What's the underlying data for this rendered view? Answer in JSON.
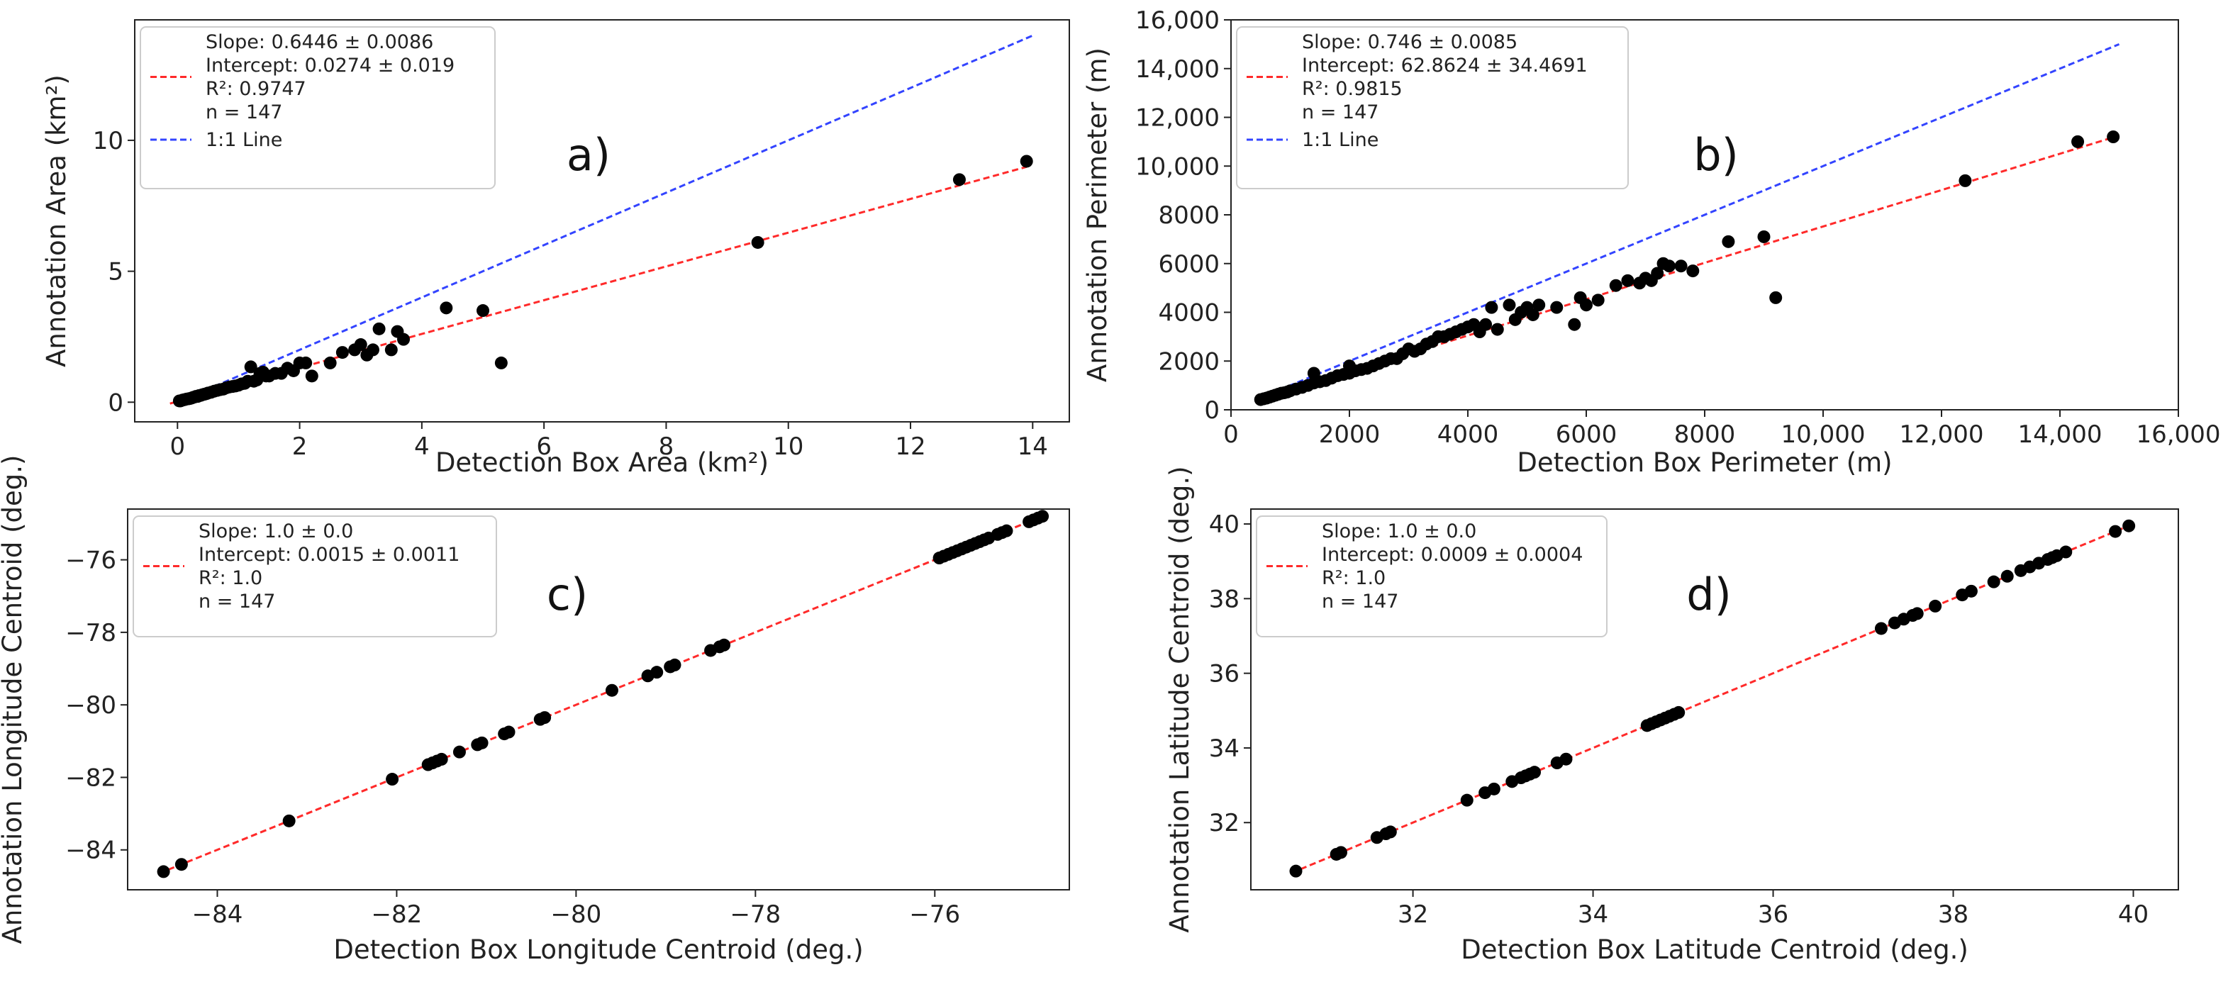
{
  "chart_data": [
    {
      "type": "scatter",
      "panel_label": "a)",
      "xlabel": "Detection Box Area (km²)",
      "ylabel": "Annotation Area (km²)",
      "xlim": [
        -0.7,
        14.6
      ],
      "ylim": [
        -0.75,
        14.6
      ],
      "xticks": [
        0,
        2,
        4,
        6,
        8,
        10,
        12,
        14
      ],
      "yticks": [
        0,
        5,
        10
      ],
      "xtick_labels": [
        "0",
        "2",
        "4",
        "6",
        "8",
        "10",
        "12",
        "14"
      ],
      "ytick_labels": [
        "0",
        "5",
        "10"
      ],
      "legend": {
        "position": "top-left",
        "entries": [
          {
            "style": "red-dashed",
            "lines": [
              "Slope: 0.6446 ± 0.0086",
              "Intercept: 0.0274 ± 0.019",
              "R²: 0.9747",
              "n = 147"
            ]
          },
          {
            "style": "blue-dashed",
            "lines": [
              "1:1 Line"
            ]
          }
        ]
      },
      "fit_line": {
        "slope": 0.6446,
        "intercept": 0.0274,
        "color": "#ff2a2a"
      },
      "identity_line": {
        "color": "#3344ff",
        "from": 0.0,
        "to": 14.0
      },
      "point_color": "#000000",
      "x": [
        0.03,
        0.05,
        0.08,
        0.1,
        0.12,
        0.15,
        0.18,
        0.2,
        0.23,
        0.25,
        0.28,
        0.3,
        0.33,
        0.35,
        0.38,
        0.4,
        0.43,
        0.45,
        0.48,
        0.5,
        0.55,
        0.6,
        0.65,
        0.7,
        0.75,
        0.8,
        0.85,
        0.9,
        0.95,
        1.0,
        1.05,
        1.1,
        1.15,
        1.2,
        1.25,
        1.3,
        1.35,
        1.4,
        1.45,
        1.5,
        1.6,
        1.7,
        1.8,
        1.9,
        2.0,
        2.1,
        2.2,
        2.5,
        2.7,
        2.9,
        3.0,
        3.1,
        3.2,
        3.3,
        3.5,
        3.6,
        3.7,
        4.4,
        5.0,
        5.3,
        9.5,
        12.8,
        13.9
      ],
      "y": [
        0.05,
        0.05,
        0.08,
        0.09,
        0.1,
        0.12,
        0.13,
        0.14,
        0.16,
        0.18,
        0.2,
        0.22,
        0.22,
        0.25,
        0.26,
        0.28,
        0.3,
        0.31,
        0.33,
        0.35,
        0.38,
        0.42,
        0.45,
        0.48,
        0.5,
        0.55,
        0.58,
        0.6,
        0.62,
        0.65,
        0.7,
        0.72,
        0.8,
        1.35,
        0.8,
        0.85,
        1.1,
        1.15,
        1.0,
        1.0,
        1.1,
        1.1,
        1.3,
        1.2,
        1.5,
        1.5,
        1.0,
        1.5,
        1.9,
        2.0,
        2.2,
        1.8,
        2.0,
        2.8,
        2.0,
        2.7,
        2.4,
        3.6,
        3.5,
        1.5,
        6.1,
        8.5,
        9.2
      ]
    },
    {
      "type": "scatter",
      "panel_label": "b)",
      "xlabel": "Detection Box Perimeter (m)",
      "ylabel": "Annotation Perimeter (m)",
      "xlim": [
        0,
        16000
      ],
      "ylim": [
        0,
        16000
      ],
      "xticks": [
        0,
        2000,
        4000,
        6000,
        8000,
        10000,
        12000,
        14000,
        16000
      ],
      "yticks": [
        0,
        2000,
        4000,
        6000,
        8000,
        10000,
        12000,
        14000,
        16000
      ],
      "xtick_labels": [
        "0",
        "2000",
        "4000",
        "6000",
        "8000",
        "10,000",
        "12,000",
        "14,000",
        "16,000"
      ],
      "ytick_labels": [
        "0",
        "2000",
        "4000",
        "6000",
        "8000",
        "10,000",
        "12,000",
        "14,000",
        "16,000"
      ],
      "legend": {
        "position": "top-left",
        "entries": [
          {
            "style": "red-dashed",
            "lines": [
              "Slope: 0.746 ± 0.0085",
              "Intercept: 62.8624 ± 34.4691",
              "R²: 0.9815",
              "n = 147"
            ]
          },
          {
            "style": "blue-dashed",
            "lines": [
              "1:1 Line"
            ]
          }
        ]
      },
      "fit_line": {
        "slope": 0.746,
        "intercept": 62.8624,
        "color": "#ff2a2a",
        "from": 500,
        "to": 15000
      },
      "identity_line": {
        "color": "#3344ff",
        "from": 500,
        "to": 15000
      },
      "point_color": "#000000",
      "x": [
        500,
        550,
        600,
        650,
        700,
        750,
        800,
        850,
        900,
        950,
        1000,
        1100,
        1200,
        1300,
        1400,
        1400,
        1500,
        1600,
        1700,
        1800,
        1900,
        2000,
        2000,
        2100,
        2200,
        2300,
        2400,
        2500,
        2600,
        2700,
        2800,
        2900,
        3000,
        3100,
        3200,
        3300,
        3400,
        3500,
        3600,
        3700,
        3800,
        3900,
        4000,
        4100,
        4200,
        4300,
        4400,
        4500,
        4700,
        4800,
        4900,
        5000,
        5100,
        5200,
        5500,
        5800,
        5900,
        6000,
        6200,
        6500,
        6700,
        6900,
        7000,
        7100,
        7200,
        7300,
        7400,
        7600,
        7800,
        8400,
        9000,
        9200,
        12400,
        14300,
        14900
      ],
      "y": [
        420,
        450,
        480,
        520,
        560,
        600,
        640,
        680,
        700,
        730,
        780,
        850,
        920,
        1000,
        1100,
        1500,
        1150,
        1200,
        1300,
        1400,
        1450,
        1500,
        1800,
        1600,
        1650,
        1700,
        1800,
        1900,
        2000,
        2100,
        2100,
        2300,
        2500,
        2400,
        2500,
        2700,
        2800,
        3000,
        3000,
        3100,
        3200,
        3300,
        3400,
        3500,
        3200,
        3500,
        4200,
        3300,
        4300,
        3700,
        4000,
        4200,
        3900,
        4300,
        4200,
        3500,
        4600,
        4300,
        4500,
        5100,
        5300,
        5200,
        5400,
        5300,
        5600,
        6000,
        5900,
        5900,
        5700,
        6900,
        7100,
        4600,
        9400,
        11000,
        11200
      ]
    },
    {
      "type": "scatter",
      "panel_label": "c)",
      "xlabel": "Detection Box Longitude Centroid (deg.)",
      "ylabel": "Annotation Longitude Centroid (deg.)",
      "xlim": [
        -85.0,
        -74.5
      ],
      "ylim": [
        -85.1,
        -74.6
      ],
      "xticks": [
        -84,
        -82,
        -80,
        -78,
        -76
      ],
      "yticks": [
        -84,
        -82,
        -80,
        -78,
        -76
      ],
      "xtick_labels": [
        "−84",
        "−82",
        "−80",
        "−78",
        "−76"
      ],
      "ytick_labels": [
        "−84",
        "−82",
        "−80",
        "−78",
        "−76"
      ],
      "legend": {
        "position": "top-left",
        "entries": [
          {
            "style": "red-dashed",
            "lines": [
              "Slope: 1.0 ± 0.0",
              "Intercept: 0.0015 ± 0.0011",
              "R²: 1.0",
              "n = 147"
            ]
          }
        ]
      },
      "fit_line": {
        "slope": 1.0,
        "intercept": 0.0015,
        "color": "#ff2a2a",
        "from": -84.65,
        "to": -74.75
      },
      "point_color": "#000000",
      "x": [
        -84.6,
        -84.4,
        -83.2,
        -82.05,
        -81.65,
        -81.6,
        -81.55,
        -81.5,
        -81.3,
        -81.1,
        -81.05,
        -80.8,
        -80.75,
        -80.4,
        -80.35,
        -79.6,
        -79.2,
        -79.1,
        -78.95,
        -78.9,
        -78.5,
        -78.4,
        -78.35,
        -75.95,
        -75.9,
        -75.85,
        -75.8,
        -75.75,
        -75.7,
        -75.65,
        -75.6,
        -75.55,
        -75.5,
        -75.45,
        -75.4,
        -75.3,
        -75.25,
        -75.2,
        -74.95,
        -74.9,
        -74.85,
        -74.8
      ],
      "y": [
        -84.6,
        -84.4,
        -83.2,
        -82.05,
        -81.65,
        -81.6,
        -81.55,
        -81.5,
        -81.3,
        -81.1,
        -81.05,
        -80.8,
        -80.75,
        -80.4,
        -80.35,
        -79.6,
        -79.2,
        -79.1,
        -78.95,
        -78.9,
        -78.5,
        -78.4,
        -78.35,
        -75.95,
        -75.9,
        -75.85,
        -75.8,
        -75.75,
        -75.7,
        -75.65,
        -75.6,
        -75.55,
        -75.5,
        -75.45,
        -75.4,
        -75.3,
        -75.25,
        -75.2,
        -74.95,
        -74.9,
        -74.85,
        -74.8
      ]
    },
    {
      "type": "scatter",
      "panel_label": "d)",
      "xlabel": "Detection Box Latitude Centroid (deg.)",
      "ylabel": "Annotation Latitude Centroid (deg.)",
      "xlim": [
        30.2,
        40.5
      ],
      "ylim": [
        30.2,
        40.4
      ],
      "xticks": [
        32,
        34,
        36,
        38,
        40
      ],
      "yticks": [
        32,
        34,
        36,
        38,
        40
      ],
      "xtick_labels": [
        "32",
        "34",
        "36",
        "38",
        "40"
      ],
      "ytick_labels": [
        "32",
        "34",
        "36",
        "38",
        "40"
      ],
      "legend": {
        "position": "top-left",
        "entries": [
          {
            "style": "red-dashed",
            "lines": [
              "Slope: 1.0 ± 0.0",
              "Intercept: 0.0009 ± 0.0004",
              "R²: 1.0",
              "n = 147"
            ]
          }
        ]
      },
      "fit_line": {
        "slope": 1.0,
        "intercept": 0.0009,
        "color": "#ff2a2a",
        "from": 30.65,
        "to": 40.0
      },
      "point_color": "#000000",
      "x": [
        30.7,
        31.15,
        31.2,
        31.6,
        31.7,
        31.75,
        32.6,
        32.8,
        32.9,
        33.1,
        33.2,
        33.25,
        33.3,
        33.35,
        33.6,
        33.7,
        34.6,
        34.65,
        34.7,
        34.75,
        34.8,
        34.85,
        34.9,
        34.95,
        37.2,
        37.35,
        37.45,
        37.55,
        37.6,
        37.8,
        38.1,
        38.2,
        38.45,
        38.6,
        38.75,
        38.85,
        38.95,
        39.05,
        39.1,
        39.15,
        39.25,
        39.8,
        39.95
      ],
      "y": [
        30.7,
        31.15,
        31.2,
        31.6,
        31.7,
        31.75,
        32.6,
        32.8,
        32.9,
        33.1,
        33.2,
        33.25,
        33.3,
        33.35,
        33.6,
        33.7,
        34.6,
        34.65,
        34.7,
        34.75,
        34.8,
        34.85,
        34.9,
        34.95,
        37.2,
        37.35,
        37.45,
        37.55,
        37.6,
        37.8,
        38.1,
        38.2,
        38.45,
        38.6,
        38.75,
        38.85,
        38.95,
        39.05,
        39.1,
        39.15,
        39.25,
        39.8,
        39.95
      ]
    }
  ]
}
